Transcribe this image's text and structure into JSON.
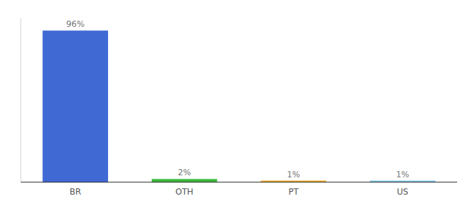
{
  "chart_data": {
    "type": "bar",
    "categories": [
      "BR",
      "OTH",
      "PT",
      "US"
    ],
    "values": [
      96,
      2,
      1,
      1
    ],
    "colors": [
      "#4169d4",
      "#3dba3d",
      "#f0a830",
      "#7ec8e3"
    ],
    "value_labels": [
      "96%",
      "2%",
      "1%",
      "1%"
    ],
    "data_labels": true,
    "ylim": [
      0,
      104
    ],
    "tick_labels": "x"
  }
}
